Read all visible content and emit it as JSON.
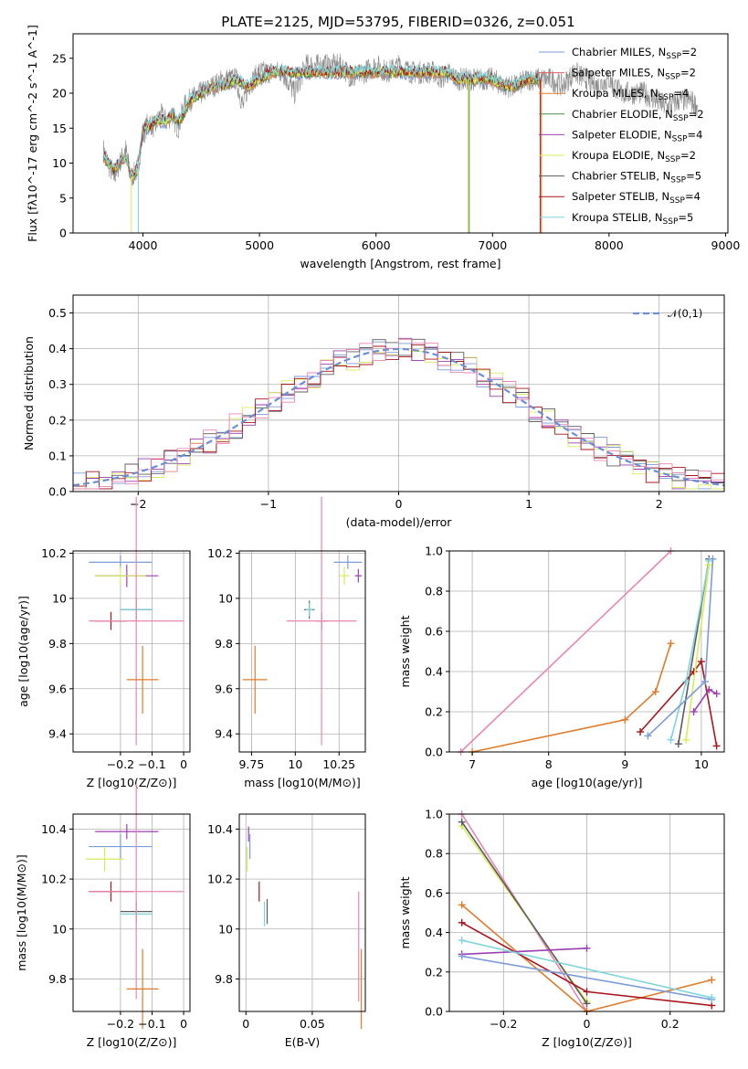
{
  "chart_data": [
    {
      "id": "spectrum",
      "type": "line",
      "title": "PLATE=2125, MJD=53795, FIBERID=0326, z=0.051",
      "xlabel": "wavelength [Angstrom, rest frame]",
      "ylabel": "Flux [fλ10^-17 erg cm^-2 s^-1 A^-1]",
      "xlim": [
        3400,
        9020
      ],
      "ylim": [
        0,
        28.5
      ],
      "xticks": [
        4000,
        5000,
        6000,
        7000,
        8000,
        9000
      ],
      "yticks": [
        0,
        5,
        10,
        15,
        20,
        25
      ],
      "grid": false,
      "legend_position": "top-right",
      "data_gray": {
        "x": [
          3660,
          3700,
          3750,
          3800,
          3850,
          3900,
          3950,
          4000,
          4050,
          4100,
          4150,
          4200,
          4250,
          4300,
          4350,
          4400,
          4500,
          4600,
          4700,
          4800,
          4860,
          4900,
          5000,
          5100,
          5200,
          5300,
          5400,
          5500,
          5600,
          5700,
          5800,
          5900,
          6000,
          6100,
          6200,
          6300,
          6400,
          6500,
          6563,
          6600,
          6700,
          6800,
          6900,
          7000,
          7100,
          7200,
          7300,
          7400,
          7500,
          7600,
          7700,
          7800,
          7900,
          8000,
          8100,
          8200,
          8300,
          8400,
          8500,
          8600,
          8700,
          8760
        ],
        "y": [
          12,
          10,
          8,
          10,
          12,
          8,
          9,
          14,
          16,
          15,
          17,
          16,
          17,
          15,
          18,
          19,
          20,
          21,
          22,
          22,
          18,
          21,
          23,
          23,
          23,
          20,
          24,
          24,
          24,
          24,
          22,
          23,
          24,
          23,
          24,
          23,
          23,
          23,
          22,
          23,
          22,
          22,
          22,
          22,
          21,
          21,
          22,
          22,
          22,
          21,
          23,
          22,
          21,
          22,
          20,
          20,
          20,
          19,
          18,
          19,
          19,
          18
        ]
      },
      "data_cyan": {
        "x": [
          3660,
          3700,
          3750,
          3800,
          3850,
          3900,
          3950,
          4000,
          4050,
          4100,
          4150,
          4200,
          4250,
          4300,
          4350,
          4400,
          4500,
          4600,
          4700,
          4800,
          4900,
          5000,
          5100,
          5200,
          5300,
          5400,
          5500,
          5600,
          5700,
          5800,
          5900,
          6000,
          6100,
          6200,
          6300,
          6400,
          6500,
          6600,
          6700,
          6800,
          6900,
          7000,
          7100,
          7200,
          7300,
          7400
        ],
        "y": [
          11,
          10,
          9,
          10,
          11,
          8,
          9,
          15,
          15,
          16,
          16,
          16,
          17,
          16,
          17,
          19,
          20,
          21,
          21,
          22,
          21,
          22,
          23,
          23,
          23,
          23,
          23,
          23,
          23,
          23,
          23,
          23,
          23,
          23,
          23,
          23,
          23,
          23,
          22,
          22,
          22,
          22,
          21,
          21,
          22,
          22
        ]
      },
      "series": [
        {
          "name": "Chabrier MILES, N_SSP=2"
        },
        {
          "name": "Salpeter MILES, N_SSP=2"
        },
        {
          "name": "Kroupa MILES, N_SSP=4"
        },
        {
          "name": "Chabrier ELODIE, N_SSP=2"
        },
        {
          "name": "Salpeter ELODIE, N_SSP=4"
        },
        {
          "name": "Kroupa ELODIE, N_SSP=2"
        },
        {
          "name": "Chabrier STELIB, N_SSP=5"
        },
        {
          "name": "Salpeter STELIB, N_SSP=4"
        },
        {
          "name": "Kroupa STELIB, N_SSP=5"
        }
      ]
    },
    {
      "id": "residuals",
      "type": "line",
      "xlabel": "(data-model)/error",
      "ylabel": "Normed distribution",
      "xlim": [
        -2.5,
        2.5
      ],
      "ylim": [
        0,
        0.55
      ],
      "xticks": [
        -2,
        -1,
        0,
        1,
        2
      ],
      "yticks": [
        0.0,
        0.1,
        0.2,
        0.3,
        0.4,
        0.5
      ],
      "grid": true,
      "legend_position": "top-right",
      "series": [
        {
          "name": "𝒩(0,1)"
        }
      ]
    },
    {
      "id": "age_vs_Z",
      "type": "scatter",
      "xlabel": "Z [log10(Z/Z⊙)]",
      "ylabel": "age [log10(age/yr)]",
      "xlim": [
        -0.35,
        0.02
      ],
      "ylim": [
        9.32,
        10.21
      ],
      "xticks": [
        -0.2,
        -0.1,
        0.0
      ],
      "yticks": [
        9.4,
        9.6,
        9.8,
        10.0,
        10.2
      ],
      "grid": true,
      "points": [
        {
          "x": -0.2,
          "y": 10.16,
          "xerr": 0.1,
          "yerr": 0.03,
          "c": 0
        },
        {
          "x": -0.18,
          "y": 10.1,
          "xerr": 0.1,
          "yerr": 0.05,
          "c": 4
        },
        {
          "x": -0.2,
          "y": 10.1,
          "xerr": 0.08,
          "yerr": 0.04,
          "c": 5
        },
        {
          "x": -0.15,
          "y": 9.95,
          "xerr": 0.05,
          "yerr": 0.05,
          "c": 6
        },
        {
          "x": -0.15,
          "y": 9.95,
          "xerr": 0.05,
          "yerr": 0.04,
          "c": 8
        },
        {
          "x": -0.23,
          "y": 9.9,
          "xerr": 0.05,
          "yerr": 0.04,
          "c": 7
        },
        {
          "x": -0.15,
          "y": 9.9,
          "xerr": 0.15,
          "yerr": 0.55,
          "c": 9
        },
        {
          "x": -0.13,
          "y": 9.64,
          "xerr": 0.05,
          "yerr": 0.15,
          "c": 2
        }
      ]
    },
    {
      "id": "age_vs_mass",
      "type": "scatter",
      "xlabel": "mass [log10(M/M⊙)]",
      "ylabel": "",
      "xlim": [
        9.68,
        10.4
      ],
      "ylim": [
        9.32,
        10.21
      ],
      "xticks": [
        9.75,
        10.0,
        10.25
      ],
      "yticks": [
        9.4,
        9.6,
        9.8,
        10.0,
        10.2
      ],
      "grid": true,
      "points": [
        {
          "x": 10.3,
          "y": 10.16,
          "xerr": 0.08,
          "yerr": 0.03,
          "c": 0
        },
        {
          "x": 10.36,
          "y": 10.1,
          "xerr": 0.02,
          "yerr": 0.03,
          "c": 4
        },
        {
          "x": 10.28,
          "y": 10.1,
          "xerr": 0.03,
          "yerr": 0.04,
          "c": 5
        },
        {
          "x": 10.08,
          "y": 9.95,
          "xerr": 0.03,
          "yerr": 0.04,
          "c": 6
        },
        {
          "x": 10.08,
          "y": 9.95,
          "xerr": 0.02,
          "yerr": 0.03,
          "c": 8
        },
        {
          "x": 10.15,
          "y": 9.9,
          "xerr": 0.03,
          "yerr": 0.04,
          "c": 7
        },
        {
          "x": 10.15,
          "y": 9.9,
          "xerr": 0.2,
          "yerr": 0.55,
          "c": 9
        },
        {
          "x": 9.77,
          "y": 9.64,
          "xerr": 0.07,
          "yerr": 0.15,
          "c": 2
        }
      ]
    },
    {
      "id": "weight_vs_age",
      "type": "line",
      "xlabel": "age [log10(age/yr)]",
      "ylabel": "mass weight",
      "xlim": [
        6.7,
        10.3
      ],
      "ylim": [
        0,
        1
      ],
      "xticks": [
        7,
        8,
        9,
        10
      ],
      "yticks": [
        0.0,
        0.2,
        0.4,
        0.6,
        0.8,
        1.0
      ],
      "grid": true,
      "series": [
        {
          "c": 9,
          "x": [
            6.85,
            9.6
          ],
          "y": [
            0,
            1
          ]
        },
        {
          "c": 2,
          "x": [
            7.0,
            9.0,
            9.4,
            9.6
          ],
          "y": [
            0,
            0.16,
            0.3,
            0.54
          ]
        },
        {
          "c": 7,
          "x": [
            9.2,
            9.9,
            10.0,
            10.2
          ],
          "y": [
            0.1,
            0.4,
            0.45,
            0.03
          ]
        },
        {
          "c": 6,
          "x": [
            9.7,
            10.1
          ],
          "y": [
            0.04,
            0.96
          ]
        },
        {
          "c": 8,
          "x": [
            9.6,
            9.8,
            10.1
          ],
          "y": [
            0.06,
            0.35,
            0.95
          ]
        },
        {
          "c": 5,
          "x": [
            9.8,
            10.1
          ],
          "y": [
            0.06,
            0.93
          ]
        },
        {
          "c": 4,
          "x": [
            9.9,
            10.1,
            10.2
          ],
          "y": [
            0.2,
            0.31,
            0.29
          ]
        },
        {
          "c": 0,
          "x": [
            9.3,
            10.05,
            10.15
          ],
          "y": [
            0.08,
            0.35,
            0.96
          ]
        }
      ]
    },
    {
      "id": "mass_vs_Z",
      "type": "scatter",
      "xlabel": "Z [log10(Z/Z⊙)]",
      "ylabel": "mass [log10(M/M⊙)]",
      "xlim": [
        -0.35,
        0.02
      ],
      "ylim": [
        9.67,
        10.46
      ],
      "xticks": [
        -0.2,
        -0.1,
        0.0
      ],
      "yticks": [
        9.8,
        10.0,
        10.2,
        10.4
      ],
      "grid": true,
      "points": [
        {
          "x": -0.18,
          "y": 10.39,
          "xerr": 0.1,
          "yerr": 0.03,
          "c": 4
        },
        {
          "x": -0.2,
          "y": 10.33,
          "xerr": 0.1,
          "yerr": 0.05,
          "c": 0
        },
        {
          "x": -0.25,
          "y": 10.28,
          "xerr": 0.06,
          "yerr": 0.05,
          "c": 5
        },
        {
          "x": -0.23,
          "y": 10.15,
          "xerr": 0.07,
          "yerr": 0.04,
          "c": 7
        },
        {
          "x": -0.15,
          "y": 10.07,
          "xerr": 0.05,
          "yerr": 0.04,
          "c": 6
        },
        {
          "x": -0.15,
          "y": 10.06,
          "xerr": 0.05,
          "yerr": 0.04,
          "c": 8
        },
        {
          "x": -0.15,
          "y": 10.15,
          "xerr": 0.15,
          "yerr": 0.43,
          "c": 9
        },
        {
          "x": -0.13,
          "y": 9.76,
          "xerr": 0.05,
          "yerr": 0.16,
          "c": 2
        }
      ]
    },
    {
      "id": "mass_vs_ebv",
      "type": "scatter",
      "xlabel": "E(B-V)",
      "ylabel": "",
      "xlim": [
        -0.005,
        0.09
      ],
      "ylim": [
        9.67,
        10.46
      ],
      "xticks": [
        0.0,
        0.05
      ],
      "yticks": [
        9.8,
        10.0,
        10.2,
        10.4
      ],
      "grid": true,
      "points": [
        {
          "x": 0.002,
          "y": 10.38,
          "xerr": 0,
          "yerr": 0.03,
          "c": 4
        },
        {
          "x": 0.003,
          "y": 10.33,
          "xerr": 0,
          "yerr": 0.05,
          "c": 0
        },
        {
          "x": 0.001,
          "y": 10.28,
          "xerr": 0,
          "yerr": 0.05,
          "c": 5
        },
        {
          "x": 0.01,
          "y": 10.15,
          "xerr": 0,
          "yerr": 0.04,
          "c": 7
        },
        {
          "x": 0.016,
          "y": 10.07,
          "xerr": 0,
          "yerr": 0.05,
          "c": 6
        },
        {
          "x": 0.014,
          "y": 10.06,
          "xerr": 0,
          "yerr": 0.05,
          "c": 8
        },
        {
          "x": 0.085,
          "y": 9.93,
          "xerr": 0,
          "yerr": 0.22,
          "c": 9
        },
        {
          "x": 0.087,
          "y": 9.76,
          "xerr": 0,
          "yerr": 0.16,
          "c": 2
        }
      ]
    },
    {
      "id": "weight_vs_Z",
      "type": "line",
      "xlabel": "Z [log10(Z/Z⊙)]",
      "ylabel": "mass weight",
      "xlim": [
        -0.33,
        0.33
      ],
      "ylim": [
        0,
        1
      ],
      "xticks": [
        -0.2,
        0.0,
        0.2
      ],
      "yticks": [
        0.0,
        0.2,
        0.4,
        0.6,
        0.8,
        1.0
      ],
      "grid": true,
      "series": [
        {
          "c": 9,
          "x": [
            -0.3,
            0.0
          ],
          "y": [
            1.0,
            0.0
          ]
        },
        {
          "c": 5,
          "x": [
            -0.3,
            0.0
          ],
          "y": [
            0.94,
            0.05
          ]
        },
        {
          "c": 6,
          "x": [
            -0.3,
            0.0
          ],
          "y": [
            0.96,
            0.04
          ]
        },
        {
          "c": 2,
          "x": [
            -0.3,
            0.0,
            0.3
          ],
          "y": [
            0.54,
            0.0,
            0.16
          ]
        },
        {
          "c": 7,
          "x": [
            -0.3,
            0.0,
            0.3
          ],
          "y": [
            0.45,
            0.1,
            0.03
          ]
        },
        {
          "c": 4,
          "x": [
            -0.3,
            0.0
          ],
          "y": [
            0.29,
            0.32
          ]
        },
        {
          "c": 0,
          "x": [
            -0.3,
            0.3
          ],
          "y": [
            0.28,
            0.06
          ]
        },
        {
          "c": 8,
          "x": [
            -0.3,
            0.3
          ],
          "y": [
            0.36,
            0.07
          ]
        }
      ]
    }
  ],
  "palette": [
    "#7b9bd9",
    "#e05d5d",
    "#e07b2a",
    "#4a8c4a",
    "#9b3fb0",
    "#d8ec5a",
    "#5c5c5c",
    "#a8171e",
    "#7ed4dc",
    "#e886b4"
  ]
}
